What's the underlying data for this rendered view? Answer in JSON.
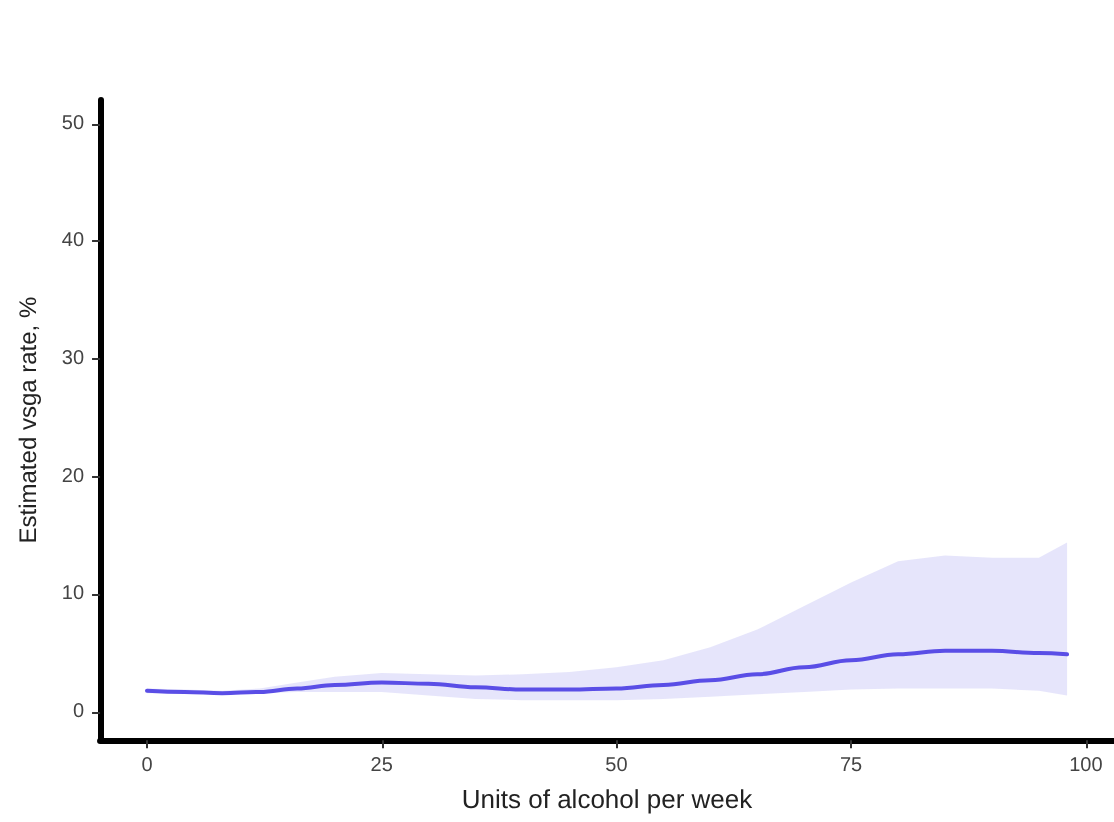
{
  "chart_data": {
    "type": "line",
    "xlabel": "Units of alcohol per week",
    "ylabel": "Estimated vsga rate, %",
    "xlim": [
      -5,
      103
    ],
    "ylim": [
      -2.4,
      52
    ],
    "xticks": [
      0,
      25,
      50,
      75,
      100
    ],
    "yticks": [
      0,
      10,
      20,
      30,
      40,
      50
    ],
    "grid": false,
    "marker": "none",
    "line_style": "solid",
    "series": [
      {
        "color": "#5a4ee6",
        "x": [
          0,
          4,
          8,
          12,
          16,
          20,
          25,
          30,
          35,
          40,
          45,
          50,
          55,
          60,
          65,
          70,
          75,
          80,
          85,
          90,
          95,
          98
        ],
        "values": [
          1.8,
          1.7,
          1.6,
          1.7,
          2.0,
          2.3,
          2.5,
          2.4,
          2.1,
          1.9,
          1.9,
          2.0,
          2.3,
          2.7,
          3.2,
          3.8,
          4.4,
          4.9,
          5.2,
          5.2,
          5.0,
          4.9
        ],
        "lower": [
          1.6,
          1.6,
          1.5,
          1.6,
          1.7,
          1.7,
          1.7,
          1.4,
          1.1,
          1.0,
          1.0,
          1.0,
          1.1,
          1.3,
          1.5,
          1.7,
          1.9,
          2.0,
          2.0,
          2.0,
          1.8,
          1.4
        ],
        "upper": [
          2.0,
          1.9,
          1.8,
          2.0,
          2.5,
          3.0,
          3.3,
          3.2,
          3.1,
          3.2,
          3.4,
          3.8,
          4.4,
          5.5,
          7.0,
          9.0,
          11.0,
          12.8,
          13.3,
          13.1,
          13.1,
          14.4
        ]
      }
    ]
  }
}
